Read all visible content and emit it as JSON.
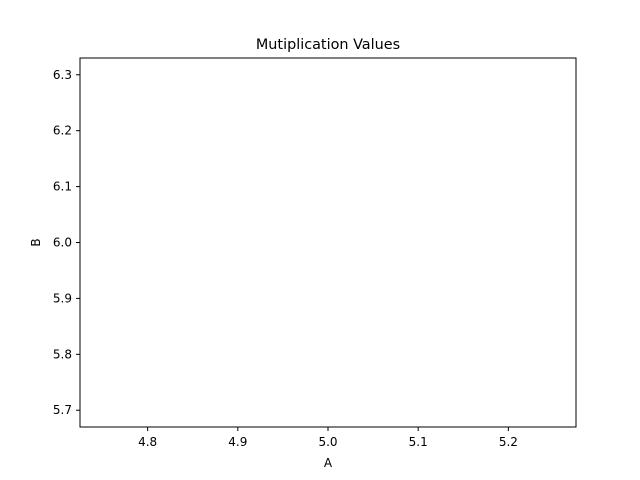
{
  "chart_data": {
    "type": "line",
    "title": "Mutiplication Values",
    "xlabel": "A",
    "ylabel": "B",
    "xlim": [
      4.725,
      5.275
    ],
    "ylim": [
      5.67,
      6.33
    ],
    "x_ticks": [
      "4.8",
      "4.9",
      "5.0",
      "5.1",
      "5.2"
    ],
    "y_ticks": [
      "5.7",
      "5.8",
      "5.9",
      "6.0",
      "6.1",
      "6.2",
      "6.3"
    ],
    "grid": false,
    "series": []
  }
}
